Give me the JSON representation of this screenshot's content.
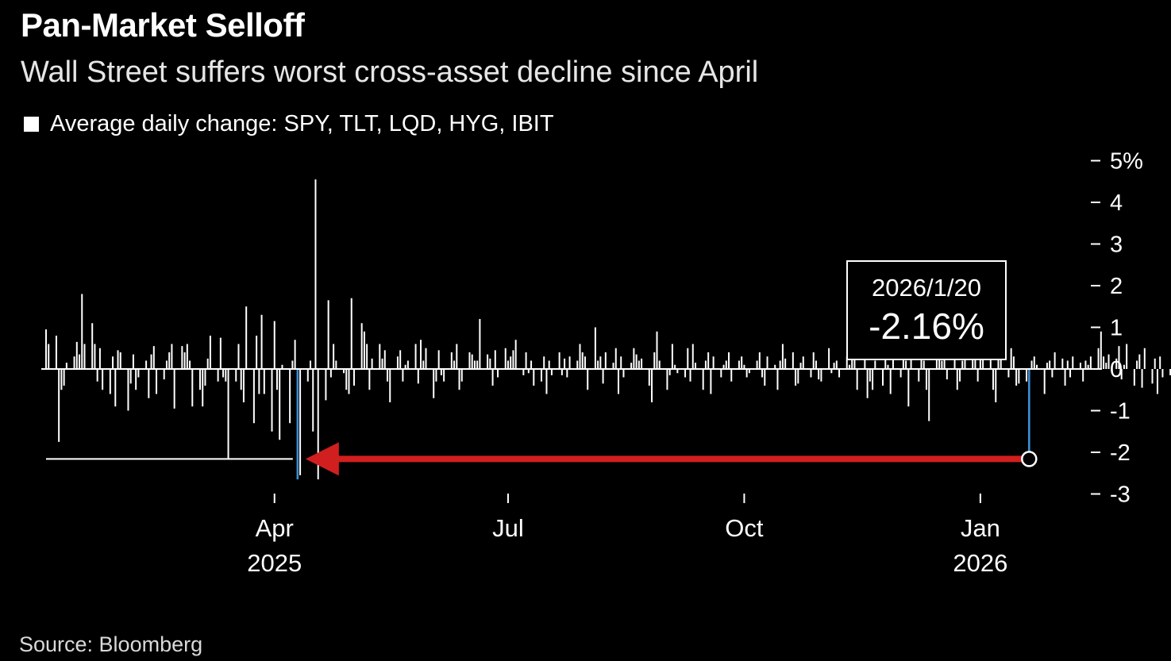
{
  "chart_data": {
    "type": "bar",
    "title": "Pan-Market Selloff",
    "subtitle": "Wall Street suffers worst cross-asset decline since April",
    "legend": [
      {
        "label": "Average daily change: SPY, TLT, LQD, HYG, IBIT",
        "color": "#ffffff"
      }
    ],
    "source": "Source: Bloomberg",
    "y_unit": "%",
    "ylim": [
      -3,
      5
    ],
    "y_ticks": [
      {
        "value": 5,
        "label": "5%"
      },
      {
        "value": 4,
        "label": "4"
      },
      {
        "value": 3,
        "label": "3"
      },
      {
        "value": 2,
        "label": "2"
      },
      {
        "value": 1,
        "label": "1"
      },
      {
        "value": 0,
        "label": "0"
      },
      {
        "value": -1,
        "label": "-1"
      },
      {
        "value": -2,
        "label": "-2"
      },
      {
        "value": -3,
        "label": "-3"
      }
    ],
    "x_ticks": [
      {
        "date": "2025-04-01",
        "label": "Apr",
        "sublabel": "2025"
      },
      {
        "date": "2025-07-01",
        "label": "Jul",
        "sublabel": ""
      },
      {
        "date": "2025-10-01",
        "label": "Oct",
        "sublabel": ""
      },
      {
        "date": "2026-01-01",
        "label": "Jan",
        "sublabel": "2026"
      }
    ],
    "xlim": [
      "2025-01-02",
      "2026-01-23"
    ],
    "grid": false,
    "legend_position": "top-left",
    "bar_color": "#ffffff",
    "highlight_color": "#3a8fd6",
    "arrow_color": "#d11f1f",
    "callout": {
      "date": "2026/1/20",
      "value": "-2.16%"
    },
    "reference_level": -2.16,
    "highlighted_days": [
      {
        "date": "2025-04-10",
        "value": -2.65
      },
      {
        "date": "2026-01-20",
        "value": -2.16
      }
    ],
    "series": [
      {
        "start_date": "2025-01-02",
        "frequency": "trading days",
        "values": [
          0.95,
          0.6,
          0.8,
          -1.75,
          -0.5,
          -0.4,
          0.15,
          0.3,
          0.65,
          0.35,
          1.8,
          0.6,
          1.1,
          0.6,
          -0.3,
          0.5,
          -0.5,
          -0.6,
          0.3,
          -0.9,
          0.45,
          0.4,
          -1.0,
          -0.35,
          0.35,
          -0.5,
          -0.2,
          0.2,
          -0.7,
          0.35,
          0.55,
          -0.6,
          -0.25,
          0.2,
          0.4,
          0.6,
          -0.95,
          0.55,
          0.4,
          0.6,
          0.2,
          -0.9,
          -0.5,
          -0.9,
          -0.4,
          0.25,
          0.8,
          -0.3,
          0.75,
          -0.2,
          -0.3,
          -2.15,
          -0.3,
          0.6,
          -0.5,
          -0.8,
          1.5,
          -1.3,
          0.8,
          -0.6,
          1.3,
          -0.6,
          -1.5,
          1.15,
          -0.5,
          -1.7,
          0.1,
          -1.3,
          0.2,
          0.7,
          -2.2,
          -2.55,
          -0.3,
          0.2,
          -1.5,
          4.55,
          -2.65,
          -0.75,
          1.65,
          -0.2,
          0.6,
          0.2,
          -0.1,
          -0.5,
          -0.6,
          1.7,
          -0.4,
          1.1,
          0.9,
          0.6,
          -0.5,
          0.25,
          0.6,
          0.25,
          0.45,
          -0.3,
          -0.8,
          0.3,
          0.45,
          -0.3,
          0.1,
          0.2,
          0.6,
          -0.35,
          0.7,
          0.2,
          0.5,
          -0.7,
          -0.3,
          0.45,
          -0.15,
          -0.3,
          0.4,
          0.2,
          0.6,
          -0.5,
          -0.3,
          0.4,
          0.35,
          0.2,
          0.2,
          1.2,
          0.35,
          0.25,
          -0.4,
          0.45,
          -0.2,
          0.5,
          0.2,
          0.3,
          0.45,
          0.7,
          -0.15,
          0.4,
          -0.1,
          0.2,
          -0.4,
          -0.3,
          0.3,
          -0.6,
          0.2,
          -0.15,
          0.4,
          -0.15,
          0.25,
          -0.2,
          0.3,
          0.2,
          0.6,
          0.4,
          0.3,
          -0.5,
          1.0,
          0.2,
          0.3,
          -0.35,
          0.4,
          0.15,
          0.5,
          -0.6,
          0.3,
          -0.2,
          0.15,
          0.5,
          0.35,
          0.2,
          0.25,
          -0.4,
          -0.8,
          0.4,
          0.9,
          0.2,
          -0.5,
          -0.15,
          0.6,
          0.1,
          -0.1,
          -0.2,
          0.5,
          -0.3,
          0.6,
          0.15,
          -0.5,
          0.2,
          0.4,
          -0.6,
          0.3,
          -0.2,
          0.1,
          0.2,
          0.4,
          -0.3,
          0.2,
          0.3,
          0.1,
          -0.2,
          -0.1,
          0.2,
          0.4,
          -0.2,
          -0.4,
          0.3,
          0.1,
          -0.5,
          0.2,
          0.6,
          0.25,
          0.4,
          -0.4,
          -0.35,
          0.15,
          0.3,
          -0.2,
          0.4,
          0.2,
          -0.25,
          -0.3,
          0.5,
          -0.1,
          0.15,
          0.2,
          -0.2,
          0.3,
          0.1,
          1.6,
          0.25,
          -0.5,
          0.4,
          -0.7,
          -0.3,
          -0.5,
          0.2,
          -0.4,
          0.6,
          0.1,
          -0.6,
          0.3,
          -0.2,
          0.4,
          0.2,
          -0.9,
          0.8,
          -0.3,
          0.3,
          0.2,
          -0.5,
          -1.25,
          0.5,
          0.3,
          0.2,
          0.8,
          -0.25,
          0.4,
          -0.5,
          -0.3,
          0.2,
          0.35,
          0.3,
          0.75,
          -0.3,
          0.7,
          0.6,
          0.3,
          -0.5,
          -0.8,
          0.65,
          0.55,
          -0.2,
          0.5,
          0.3,
          -0.4,
          -0.35,
          -0.3,
          0.6,
          0.2,
          0.3,
          0.1,
          -0.6,
          0.15,
          0.2,
          -0.2,
          0.4,
          0.25,
          -0.4,
          0.2,
          -0.2,
          0.3,
          0.15,
          -0.3,
          0.2,
          0.1,
          0.3,
          0.5,
          0.9,
          0.3,
          0.15,
          0.35,
          0.25,
          0.55,
          -0.25,
          0.1,
          0.6,
          -0.4,
          0.2,
          0.35,
          -0.45,
          0.5,
          -0.35,
          0.25,
          -0.6,
          0.3,
          -0.2,
          -0.15,
          0.2,
          -0.3,
          0.3,
          0.4,
          0.5,
          -0.5,
          0.2,
          -0.6,
          -0.25,
          0.3,
          0.6,
          -0.5,
          0.35,
          0.2,
          -0.3,
          0.5,
          -0.4,
          -0.6,
          0.25,
          0.35,
          0.4,
          0.2,
          -0.45,
          0.3,
          -0.3,
          0.2,
          0.6,
          -0.9,
          -0.2,
          -1.25,
          0.2,
          0.35,
          0.3,
          -0.55,
          -0.6,
          -0.6,
          0.2,
          -0.2,
          0.1,
          0.3,
          0.25,
          -0.2,
          -0.4,
          0.15,
          0.3,
          -0.3,
          0.25,
          0.2,
          -0.35,
          0.2,
          -0.5,
          -0.1,
          0.3,
          0.2,
          -0.35,
          0.3,
          0.15,
          -0.3,
          0.6,
          0.8,
          -0.5
        ]
      }
    ]
  }
}
